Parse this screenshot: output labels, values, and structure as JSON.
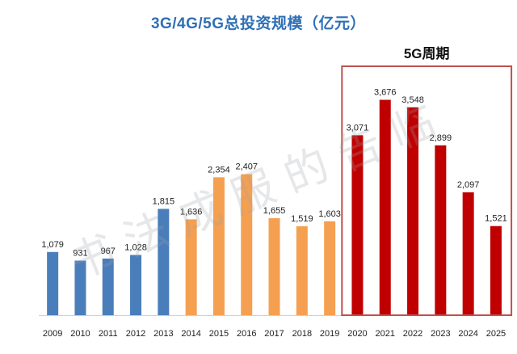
{
  "chart_data": {
    "type": "bar",
    "title": "3G/4G/5G总投资规模（亿元）",
    "categories": [
      "2009",
      "2010",
      "2011",
      "2012",
      "2013",
      "2014",
      "2015",
      "2016",
      "2017",
      "2018",
      "2019",
      "2020",
      "2021",
      "2022",
      "2023",
      "2024",
      "2025"
    ],
    "values": [
      1079,
      931,
      967,
      1028,
      1815,
      1636,
      2354,
      2407,
      1655,
      1519,
      1603,
      3071,
      3676,
      3548,
      2899,
      2097,
      1521
    ],
    "value_labels": [
      "1,079",
      "931",
      "967",
      "1,028",
      "1,815",
      "1,636",
      "2,354",
      "2,407",
      "1,655",
      "1,519",
      "1,603",
      "3,071",
      "3,676",
      "3,548",
      "2,899",
      "2,097",
      "1,521"
    ],
    "series_groups": [
      {
        "name": "3G",
        "from": 0,
        "to": 4,
        "color": "#4a7ebb"
      },
      {
        "name": "4G",
        "from": 5,
        "to": 10,
        "color": "#f5a050"
      },
      {
        "name": "5G",
        "from": 11,
        "to": 16,
        "color": "#c00000"
      }
    ],
    "highlight": {
      "label": "5G周期",
      "from": 11,
      "to": 16,
      "color": "#c0504d"
    },
    "ylim": [
      0,
      4000
    ],
    "xlabel": "",
    "ylabel": "",
    "grid": false,
    "watermark": "书 法 成 服 的 告 临"
  }
}
